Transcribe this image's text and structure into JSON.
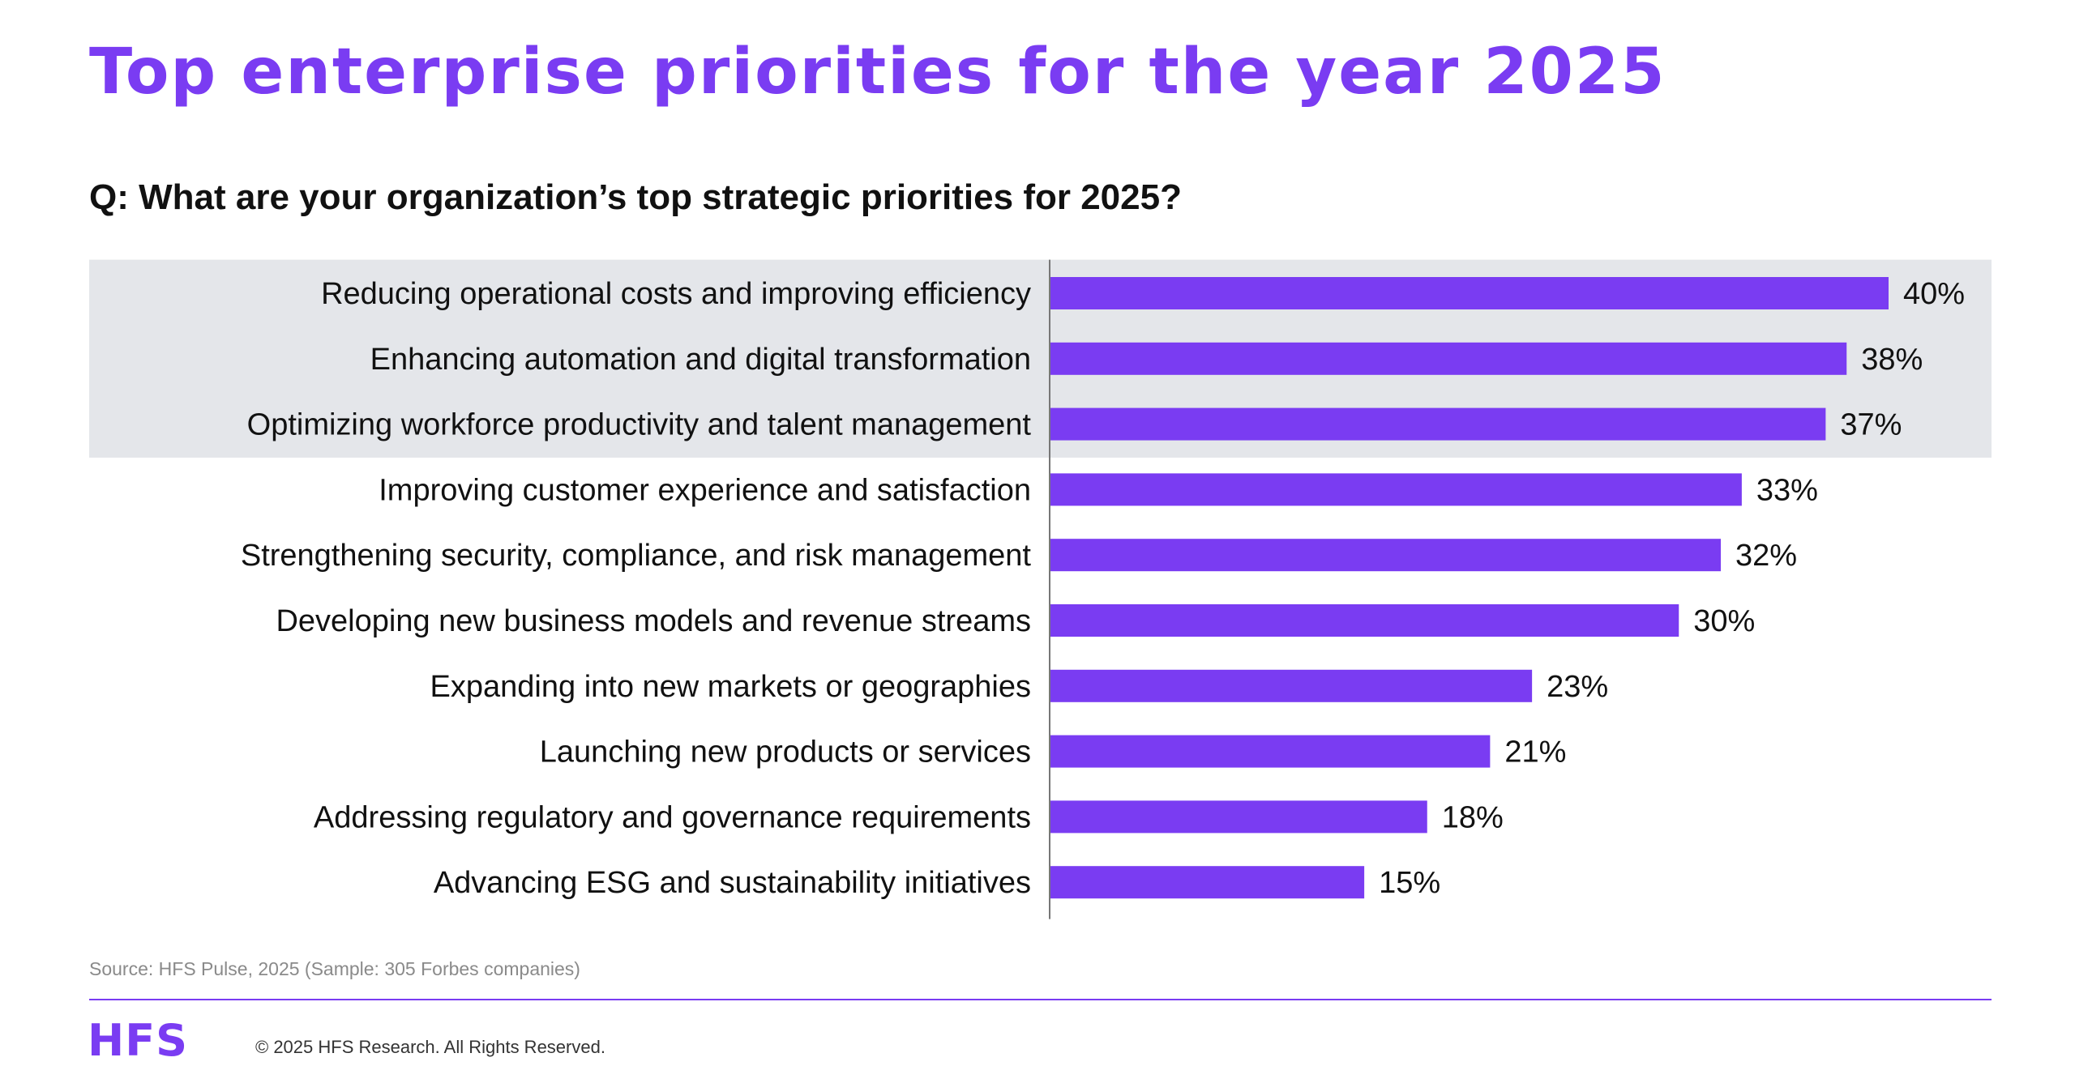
{
  "page": {
    "title": "Top enterprise priorities for the year 2025",
    "question": "Q: What are your organization’s top strategic priorities for 2025?",
    "source": "Source: HFS Pulse, 2025 (Sample: 305 Forbes companies)",
    "logo": "HFS",
    "copyright": "© 2025 HFS Research. All Rights Reserved.",
    "accent_color": "#7a3cf2",
    "highlight_color": "#e4e6ea"
  },
  "chart_data": {
    "type": "bar",
    "orientation": "horizontal",
    "categories": [
      "Reducing operational costs and improving efficiency",
      "Enhancing automation and digital transformation",
      "Optimizing workforce productivity and talent management",
      "Improving customer experience and satisfaction",
      "Strengthening security, compliance, and risk management",
      "Developing new business models and revenue streams",
      "Expanding into new markets or geographies",
      "Launching new products or services",
      "Addressing regulatory and governance requirements",
      "Advancing ESG and sustainability initiatives"
    ],
    "values": [
      40,
      38,
      37,
      33,
      32,
      30,
      23,
      21,
      18,
      15
    ],
    "value_labels": [
      "40%",
      "38%",
      "37%",
      "33%",
      "32%",
      "30%",
      "23%",
      "21%",
      "18%",
      "15%"
    ],
    "highlighted_top": 3,
    "bar_color": "#7a3cf2",
    "grid": false,
    "legend": false
  }
}
